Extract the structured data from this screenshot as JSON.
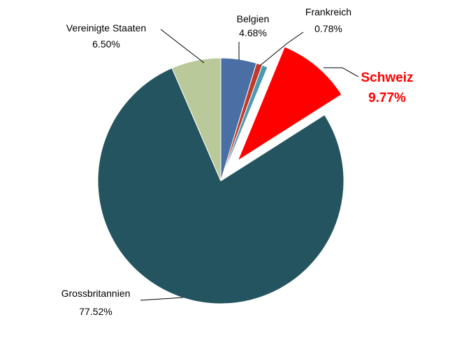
{
  "chart_data": {
    "type": "pie",
    "title": "",
    "series": [
      {
        "categories": [
          "Belgien",
          "Frankreich",
          "",
          "Schweiz",
          "Grossbritannien",
          "Vereinigte Staaten"
        ],
        "values": [
          4.68,
          0.78,
          0.75,
          9.77,
          77.52,
          6.5
        ],
        "value_labels": [
          "4.68%",
          "0.78%",
          "",
          "9.77%",
          "77.52%",
          "6.50%"
        ],
        "colors": [
          "#4a6fa5",
          "#c0392b",
          "#4a9bb0",
          "#ff0000",
          "#24545f",
          "#b9c99a"
        ],
        "exploded": [
          false,
          false,
          false,
          true,
          false,
          false
        ],
        "highlighted": [
          false,
          false,
          false,
          true,
          false,
          false
        ]
      }
    ],
    "legend": "none"
  }
}
